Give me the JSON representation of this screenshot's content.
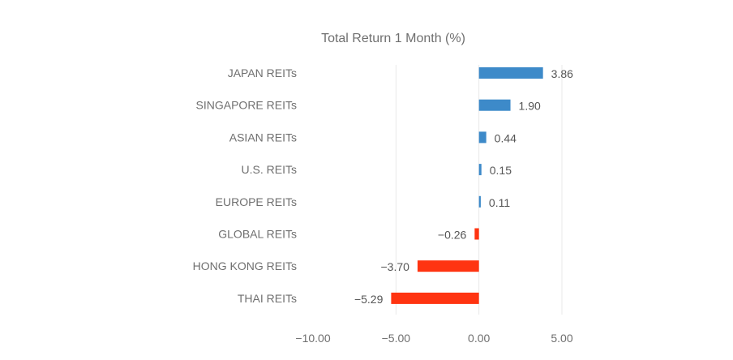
{
  "chart_data": {
    "type": "bar",
    "orientation": "horizontal",
    "title": "Total Return 1 Month  (%)",
    "xlabel": "",
    "ylabel": "",
    "categories": [
      "JAPAN REITs",
      "SINGAPORE REITs",
      "ASIAN REITs",
      "U.S. REITs",
      "EUROPE REITs",
      "GLOBAL REITs",
      "HONG KONG REITs",
      "THAI REITs"
    ],
    "values": [
      3.86,
      1.9,
      0.44,
      0.15,
      0.11,
      -0.26,
      -3.7,
      -5.29
    ],
    "value_labels": [
      "3.86",
      "1.90",
      "0.44",
      "0.15",
      "0.11",
      "−0.26",
      "−3.70",
      "−5.29"
    ],
    "xlim": [
      -10,
      5
    ],
    "xticks": [
      -10,
      -5,
      0,
      5
    ],
    "xtick_labels": [
      "−10.00",
      "−5.00",
      "0.00",
      "5.00"
    ],
    "grid": true,
    "colors": {
      "positive": "#3d8ac9",
      "negative": "#ff3411"
    }
  }
}
